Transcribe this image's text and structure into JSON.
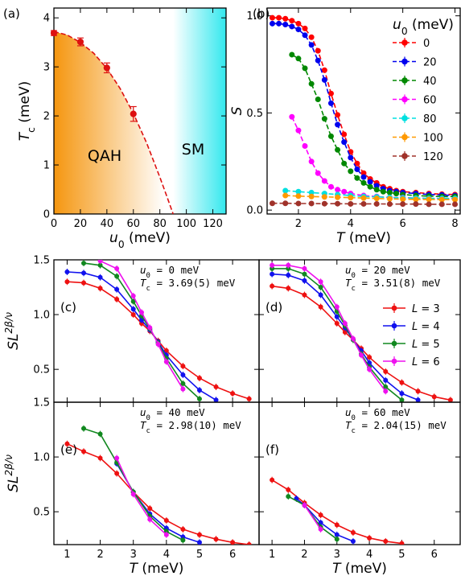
{
  "chart_data": [
    {
      "id": "a",
      "panel_label": "(a)",
      "type": "scatter",
      "xlabel": "u0 (meV)",
      "ylabel": "Tc (meV)",
      "xlim": [
        0,
        130
      ],
      "ylim": [
        0,
        4.2
      ],
      "xticks": [
        0,
        20,
        40,
        60,
        80,
        100,
        120
      ],
      "yticks": [
        0,
        1,
        2,
        3,
        4
      ],
      "regions": [
        {
          "label": "QAH",
          "color": "#f5960f"
        },
        {
          "label": "SM",
          "color": "#33e8ee"
        }
      ],
      "series": [
        {
          "x": [
            0,
            20,
            40,
            60
          ],
          "y": [
            3.69,
            3.51,
            2.98,
            2.04
          ],
          "err": [
            0.05,
            0.08,
            0.1,
            0.15
          ],
          "color": "#dd1111"
        }
      ],
      "fit": {
        "x": [
          0,
          10,
          20,
          30,
          40,
          50,
          60,
          70,
          80,
          85,
          90
        ],
        "y": [
          3.72,
          3.65,
          3.5,
          3.28,
          2.97,
          2.56,
          2.05,
          1.45,
          0.75,
          0.38,
          0.0
        ],
        "color": "#dd1111",
        "style": "dashed"
      }
    },
    {
      "id": "b",
      "panel_label": "(b)",
      "type": "line",
      "xlabel": "T (meV)",
      "ylabel": "S",
      "xlim": [
        0.8,
        8.2
      ],
      "ylim": [
        -0.02,
        1.04
      ],
      "xticks": [
        2,
        4,
        6,
        8
      ],
      "yticks": [
        0.0,
        0.5,
        1.0
      ],
      "legend_title": "u0 (meV)",
      "legend_position": "right",
      "series": [
        {
          "name": "0",
          "color": "#ff0000",
          "x": [
            1.0,
            1.25,
            1.5,
            1.75,
            2.0,
            2.25,
            2.5,
            2.75,
            3.0,
            3.25,
            3.5,
            3.75,
            4.0,
            4.25,
            4.5,
            4.75,
            5.0,
            5.25,
            5.5,
            5.75,
            6.0,
            6.5,
            7.0,
            7.5,
            8.0
          ],
          "y": [
            0.99,
            0.99,
            0.985,
            0.975,
            0.96,
            0.935,
            0.89,
            0.82,
            0.72,
            0.6,
            0.49,
            0.39,
            0.3,
            0.24,
            0.19,
            0.16,
            0.14,
            0.12,
            0.11,
            0.1,
            0.095,
            0.09,
            0.085,
            0.082,
            0.08
          ]
        },
        {
          "name": "20",
          "color": "#0000ee",
          "x": [
            1.0,
            1.25,
            1.5,
            1.75,
            2.0,
            2.25,
            2.5,
            2.75,
            3.0,
            3.25,
            3.5,
            3.75,
            4.0,
            4.25,
            4.5,
            4.75,
            5.0,
            5.25,
            5.5,
            5.75,
            6.0,
            6.5,
            7.0,
            7.5,
            8.0
          ],
          "y": [
            0.96,
            0.96,
            0.955,
            0.945,
            0.93,
            0.9,
            0.85,
            0.77,
            0.67,
            0.55,
            0.44,
            0.35,
            0.27,
            0.21,
            0.17,
            0.145,
            0.125,
            0.11,
            0.1,
            0.095,
            0.09,
            0.085,
            0.08,
            0.078,
            0.075
          ]
        },
        {
          "name": "40",
          "color": "#008800",
          "x": [
            1.75,
            2.0,
            2.25,
            2.5,
            2.75,
            3.0,
            3.25,
            3.5,
            3.75,
            4.0,
            4.25,
            4.5,
            4.75,
            5.0,
            5.25,
            5.5,
            5.75,
            6.0,
            6.5,
            7.0,
            7.5,
            8.0
          ],
          "y": [
            0.8,
            0.78,
            0.73,
            0.65,
            0.57,
            0.47,
            0.38,
            0.31,
            0.24,
            0.2,
            0.165,
            0.14,
            0.12,
            0.105,
            0.095,
            0.09,
            0.085,
            0.08,
            0.075,
            0.072,
            0.07,
            0.07
          ]
        },
        {
          "name": "60",
          "color": "#ff00ff",
          "x": [
            1.75,
            2.0,
            2.25,
            2.5,
            2.75,
            3.0,
            3.25,
            3.5,
            3.75,
            4.0,
            4.5,
            5.0,
            5.5,
            6.0,
            6.5,
            7.0,
            7.5,
            8.0
          ],
          "y": [
            0.48,
            0.41,
            0.33,
            0.25,
            0.19,
            0.15,
            0.12,
            0.105,
            0.095,
            0.085,
            0.075,
            0.07,
            0.065,
            0.065,
            0.062,
            0.06,
            0.06,
            0.06
          ]
        },
        {
          "name": "80",
          "color": "#00e0e0",
          "x": [
            1.5,
            2.0,
            2.5,
            3.0,
            3.5,
            4.0,
            4.5,
            5.0,
            5.5,
            6.0,
            6.5,
            7.0,
            7.5,
            8.0
          ],
          "y": [
            0.1,
            0.095,
            0.09,
            0.085,
            0.08,
            0.075,
            0.07,
            0.068,
            0.065,
            0.063,
            0.062,
            0.06,
            0.06,
            0.06
          ]
        },
        {
          "name": "100",
          "color": "#ff9900",
          "x": [
            1.5,
            2.0,
            2.5,
            3.0,
            3.5,
            4.0,
            4.5,
            5.0,
            5.5,
            6.0,
            6.5,
            7.0,
            7.5,
            8.0
          ],
          "y": [
            0.075,
            0.072,
            0.07,
            0.068,
            0.066,
            0.064,
            0.062,
            0.06,
            0.058,
            0.056,
            0.055,
            0.055,
            0.054,
            0.054
          ]
        },
        {
          "name": "120",
          "color": "#a0322a",
          "x": [
            1.0,
            1.5,
            2.0,
            2.5,
            3.0,
            3.5,
            4.0,
            4.5,
            5.0,
            5.5,
            6.0,
            6.5,
            7.0,
            7.5,
            8.0
          ],
          "y": [
            0.035,
            0.035,
            0.034,
            0.034,
            0.033,
            0.033,
            0.032,
            0.032,
            0.032,
            0.031,
            0.031,
            0.031,
            0.03,
            0.03,
            0.03
          ]
        }
      ]
    },
    {
      "id": "c",
      "panel_label": "(c)",
      "type": "line",
      "ylabel": "SL^2β/ν",
      "xlim": [
        0.6,
        6.8
      ],
      "ylim": [
        0.2,
        1.5
      ],
      "yticks": [
        0.5,
        1.0,
        1.5
      ],
      "annotation": [
        "u0 = 0 meV",
        "Tc = 3.69(5) meV"
      ],
      "series": [
        {
          "name": "L = 3",
          "color": "#ee1111",
          "x": [
            1.0,
            1.5,
            2.0,
            2.5,
            3.0,
            3.25,
            3.5,
            3.75,
            4.0,
            4.5,
            5.0,
            5.5,
            6.0,
            6.5
          ],
          "y": [
            1.3,
            1.29,
            1.24,
            1.14,
            1.0,
            0.92,
            0.85,
            0.76,
            0.67,
            0.53,
            0.42,
            0.34,
            0.28,
            0.23
          ]
        },
        {
          "name": "L = 4",
          "color": "#1111ee",
          "x": [
            1.0,
            1.5,
            2.0,
            2.5,
            3.0,
            3.25,
            3.5,
            3.75,
            4.0,
            4.5,
            5.0,
            5.5
          ],
          "y": [
            1.39,
            1.38,
            1.34,
            1.23,
            1.05,
            0.95,
            0.86,
            0.75,
            0.63,
            0.45,
            0.31,
            0.22
          ]
        },
        {
          "name": "L = 5",
          "color": "#11881f",
          "x": [
            1.5,
            2.0,
            2.5,
            3.0,
            3.25,
            3.5,
            3.75,
            4.0,
            4.5,
            5.0
          ],
          "y": [
            1.47,
            1.45,
            1.35,
            1.12,
            0.99,
            0.87,
            0.74,
            0.6,
            0.37,
            0.23
          ]
        },
        {
          "name": "L = 6",
          "color": "#ee11ee",
          "x": [
            2.0,
            2.5,
            3.0,
            3.25,
            3.5,
            3.75,
            4.0,
            4.5
          ],
          "y": [
            1.49,
            1.42,
            1.17,
            1.02,
            0.88,
            0.73,
            0.57,
            0.32
          ]
        }
      ]
    },
    {
      "id": "d",
      "panel_label": "(d)",
      "type": "line",
      "xlim": [
        0.6,
        6.8
      ],
      "ylim": [
        0.2,
        1.5
      ],
      "annotation": [
        "u0 = 20 meV",
        "Tc = 3.51(8) meV"
      ],
      "legend_position": "right",
      "series": [
        {
          "name": "L = 3",
          "color": "#ee1111",
          "x": [
            1.0,
            1.5,
            2.0,
            2.5,
            3.0,
            3.25,
            3.5,
            3.75,
            4.0,
            4.5,
            5.0,
            5.5,
            6.0,
            6.5
          ],
          "y": [
            1.26,
            1.24,
            1.18,
            1.07,
            0.92,
            0.84,
            0.77,
            0.69,
            0.61,
            0.48,
            0.38,
            0.3,
            0.25,
            0.22
          ]
        },
        {
          "name": "L = 4",
          "color": "#1111ee",
          "x": [
            1.0,
            1.5,
            2.0,
            2.5,
            3.0,
            3.25,
            3.5,
            3.75,
            4.0,
            4.5,
            5.0,
            5.5
          ],
          "y": [
            1.37,
            1.36,
            1.31,
            1.18,
            0.98,
            0.88,
            0.77,
            0.67,
            0.56,
            0.4,
            0.28,
            0.22
          ]
        },
        {
          "name": "L = 5",
          "color": "#11881f",
          "x": [
            1.0,
            1.5,
            2.0,
            2.5,
            3.0,
            3.25,
            3.5,
            3.75,
            4.0,
            4.5,
            5.0
          ],
          "y": [
            1.42,
            1.42,
            1.37,
            1.25,
            1.03,
            0.9,
            0.77,
            0.64,
            0.52,
            0.34,
            0.22
          ]
        },
        {
          "name": "L = 6",
          "color": "#ee11ee",
          "x": [
            1.0,
            1.5,
            2.0,
            2.5,
            3.0,
            3.25,
            3.5,
            3.75,
            4.0,
            4.5
          ],
          "y": [
            1.45,
            1.45,
            1.42,
            1.3,
            1.07,
            0.92,
            0.78,
            0.63,
            0.5,
            0.3
          ]
        }
      ]
    },
    {
      "id": "e",
      "panel_label": "(e)",
      "type": "line",
      "xlabel": "T (meV)",
      "ylabel": "SL^2β/ν",
      "xlim": [
        0.6,
        6.8
      ],
      "ylim": [
        0.2,
        1.5
      ],
      "xticks": [
        1,
        2,
        3,
        4,
        5,
        6
      ],
      "yticks": [
        0.5,
        1.0,
        1.5
      ],
      "annotation": [
        "u0 = 40 meV",
        "Tc = 2.98(10) meV"
      ],
      "series": [
        {
          "name": "L = 3",
          "color": "#ee1111",
          "x": [
            1.0,
            1.5,
            2.0,
            2.5,
            3.0,
            3.5,
            4.0,
            4.5,
            5.0,
            5.5,
            6.0,
            6.5
          ],
          "y": [
            1.12,
            1.05,
            0.99,
            0.85,
            0.68,
            0.53,
            0.42,
            0.34,
            0.29,
            0.25,
            0.22,
            0.2
          ]
        },
        {
          "name": "L = 4",
          "color": "#1111ee",
          "x": [
            2.5,
            3.0,
            3.5,
            4.0,
            4.5,
            5.0
          ],
          "y": [
            0.94,
            0.68,
            0.48,
            0.35,
            0.27,
            0.22
          ]
        },
        {
          "name": "L = 5",
          "color": "#11881f",
          "x": [
            1.5,
            2.0,
            2.5,
            3.0,
            3.5,
            4.0,
            4.5
          ],
          "y": [
            1.26,
            1.21,
            0.95,
            0.68,
            0.46,
            0.32,
            0.24
          ]
        },
        {
          "name": "L = 6",
          "color": "#ee11ee",
          "x": [
            2.5,
            3.0,
            3.5,
            4.0
          ],
          "y": [
            0.99,
            0.66,
            0.43,
            0.29
          ]
        }
      ]
    },
    {
      "id": "f",
      "panel_label": "(f)",
      "type": "line",
      "xlabel": "T (meV)",
      "xlim": [
        0.6,
        6.8
      ],
      "ylim": [
        0.2,
        1.5
      ],
      "xticks": [
        1,
        2,
        3,
        4,
        5,
        6
      ],
      "annotation": [
        "u0 = 60 meV",
        "Tc = 2.04(15) meV"
      ],
      "series": [
        {
          "name": "L = 3",
          "color": "#ee1111",
          "x": [
            1.0,
            1.5,
            2.0,
            2.5,
            3.0,
            3.5,
            4.0,
            4.5,
            5.0
          ],
          "y": [
            0.79,
            0.7,
            0.58,
            0.47,
            0.38,
            0.31,
            0.26,
            0.23,
            0.21
          ]
        },
        {
          "name": "L = 4",
          "color": "#1111ee",
          "x": [
            1.75,
            2.0,
            2.5,
            3.0,
            3.5
          ],
          "y": [
            0.62,
            0.56,
            0.4,
            0.29,
            0.23
          ]
        },
        {
          "name": "L = 5",
          "color": "#11881f",
          "x": [
            1.5,
            2.0,
            2.5,
            3.0
          ],
          "y": [
            0.64,
            0.56,
            0.36,
            0.25
          ]
        },
        {
          "name": "L = 6",
          "color": "#ee11ee",
          "x": [
            2.0,
            2.5
          ],
          "y": [
            0.56,
            0.34
          ]
        }
      ]
    }
  ]
}
